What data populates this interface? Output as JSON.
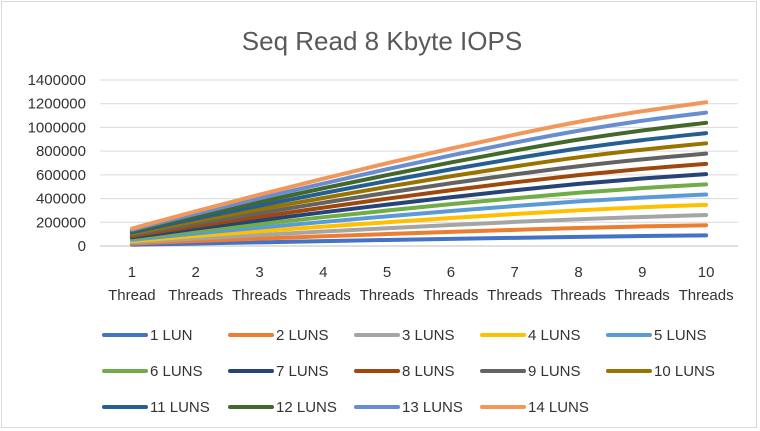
{
  "chart_data": {
    "type": "line",
    "title": "Seq Read 8 Kbyte IOPS",
    "xlabel": "",
    "ylabel": "",
    "categories": [
      [
        "1",
        "Thread"
      ],
      [
        "2",
        "Threads"
      ],
      [
        "3",
        "Threads"
      ],
      [
        "4",
        "Threads"
      ],
      [
        "5",
        "Threads"
      ],
      [
        "6",
        "Threads"
      ],
      [
        "7",
        "Threads"
      ],
      [
        "8",
        "Threads"
      ],
      [
        "9",
        "Threads"
      ],
      [
        "10",
        "Threads"
      ]
    ],
    "ylim": [
      0,
      1400000
    ],
    "yticks": [
      "0",
      "200000",
      "400000",
      "600000",
      "800000",
      "1000000",
      "1200000",
      "1400000"
    ],
    "grid": true,
    "legend_position": "bottom",
    "series": [
      {
        "name": "1 LUN",
        "color": "#4472C4",
        "values": [
          11000,
          21000,
          31000,
          41000,
          51000,
          60000,
          69000,
          77000,
          84000,
          90000
        ]
      },
      {
        "name": "2 LUNS",
        "color": "#ED7D31",
        "values": [
          21000,
          42000,
          62000,
          82000,
          101000,
          119000,
          136000,
          152000,
          165000,
          175000
        ]
      },
      {
        "name": "3 LUNS",
        "color": "#A5A5A5",
        "values": [
          32000,
          63000,
          93000,
          122000,
          150000,
          177000,
          203000,
          226000,
          245000,
          261000
        ]
      },
      {
        "name": "4 LUNS",
        "color": "#FFC000",
        "values": [
          42000,
          84000,
          124000,
          163000,
          200000,
          236000,
          270000,
          301000,
          327000,
          347000
        ]
      },
      {
        "name": "5 LUNS",
        "color": "#5B9BD5",
        "values": [
          53000,
          105000,
          155000,
          203000,
          250000,
          295000,
          337000,
          376000,
          408000,
          434000
        ]
      },
      {
        "name": "6 LUNS",
        "color": "#70AD47",
        "values": [
          63000,
          125000,
          185000,
          243000,
          299000,
          353000,
          403000,
          449000,
          488000,
          520000
        ]
      },
      {
        "name": "7 LUNS",
        "color": "#264478",
        "values": [
          74000,
          146000,
          216000,
          284000,
          349000,
          411000,
          470000,
          524000,
          569000,
          606000
        ]
      },
      {
        "name": "8 LUNS",
        "color": "#9E480E",
        "values": [
          84000,
          167000,
          247000,
          324000,
          399000,
          470000,
          537000,
          598000,
          650000,
          693000
        ]
      },
      {
        "name": "9 LUNS",
        "color": "#636363",
        "values": [
          95000,
          188000,
          278000,
          365000,
          449000,
          529000,
          604000,
          673000,
          731000,
          779000
        ]
      },
      {
        "name": "10 LUNS",
        "color": "#997300",
        "values": [
          105000,
          209000,
          309000,
          405000,
          499000,
          588000,
          671000,
          748000,
          812000,
          866000
        ]
      },
      {
        "name": "11 LUNS",
        "color": "#255E91",
        "values": [
          116000,
          230000,
          340000,
          446000,
          548000,
          646000,
          738000,
          822000,
          893000,
          952000
        ]
      },
      {
        "name": "12 LUNS",
        "color": "#43682B",
        "values": [
          126000,
          251000,
          371000,
          487000,
          598000,
          705000,
          805000,
          897000,
          974000,
          1039000
        ]
      },
      {
        "name": "13 LUNS",
        "color": "#698ED0",
        "values": [
          137000,
          272000,
          402000,
          527000,
          648000,
          764000,
          872000,
          972000,
          1056000,
          1125000
        ]
      },
      {
        "name": "14 LUNS",
        "color": "#F1975A",
        "values": [
          147000,
          293000,
          433000,
          568000,
          698000,
          822000,
          939000,
          1047000,
          1137000,
          1212000
        ]
      }
    ]
  }
}
